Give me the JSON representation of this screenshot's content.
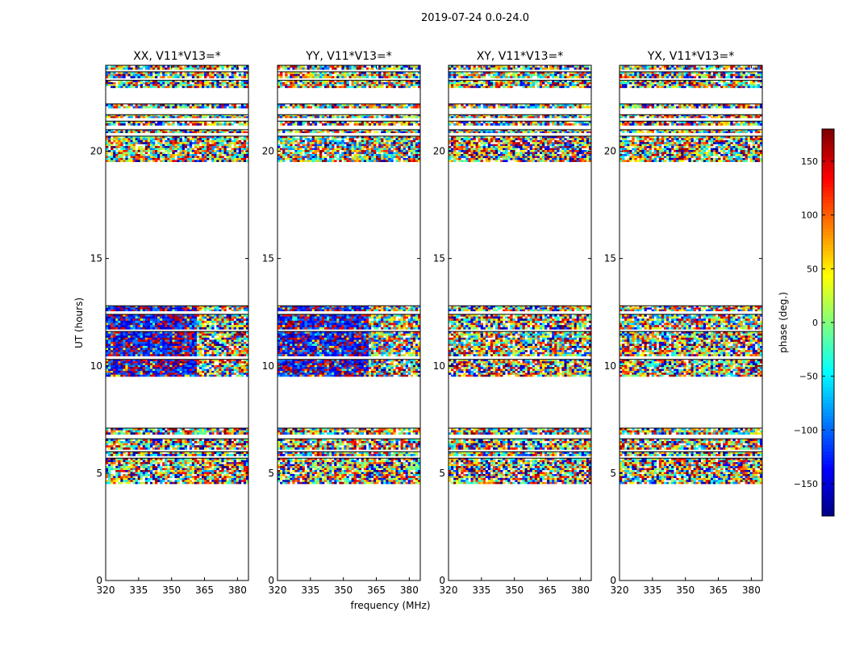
{
  "figure_title": "2019-07-24 0.0-24.0",
  "chart_data": [
    {
      "type": "heatmap",
      "title": "XX, V11*V13=*",
      "xlabel": "",
      "ylabel": "UT (hours)",
      "xlim": [
        320,
        385
      ],
      "ylim": [
        0,
        24
      ],
      "xticks": [
        320,
        335,
        350,
        365,
        380
      ],
      "yticks": [
        0,
        5,
        10,
        15,
        20
      ],
      "value_field": "phase (deg.)",
      "phase_character": "strong blue/red bias in 320-360 MHz during 9.5-12.8 h; random elsewhere",
      "bias_band": [
        320,
        362
      ]
    },
    {
      "type": "heatmap",
      "title": "YY, V11*V13=*",
      "xlabel": "frequency (MHz)",
      "ylabel": "",
      "xlim": [
        320,
        385
      ],
      "ylim": [
        0,
        24
      ],
      "xticks": [
        320,
        335,
        350,
        365,
        380
      ],
      "yticks": [
        0,
        5,
        10,
        15,
        20
      ],
      "value_field": "phase (deg.)",
      "phase_character": "strong blue/red bias in 320-360 MHz during 9.5-12.8 h; random elsewhere",
      "bias_band": [
        320,
        361
      ]
    },
    {
      "type": "heatmap",
      "title": "XY, V11*V13=*",
      "xlabel": "",
      "ylabel": "",
      "xlim": [
        320,
        385
      ],
      "ylim": [
        0,
        24
      ],
      "xticks": [
        320,
        335,
        350,
        365,
        380
      ],
      "yticks": [
        0,
        5,
        10,
        15,
        20
      ],
      "value_field": "phase (deg.)",
      "phase_character": "random phase noise in all data blocks",
      "bias_band": null
    },
    {
      "type": "heatmap",
      "title": "YX, V11*V13=*",
      "xlabel": "",
      "ylabel": "",
      "xlim": [
        320,
        385
      ],
      "ylim": [
        0,
        24
      ],
      "xticks": [
        320,
        335,
        350,
        365,
        380
      ],
      "yticks": [
        0,
        5,
        10,
        15,
        20
      ],
      "value_field": "phase (deg.)",
      "phase_character": "random phase noise in all data blocks",
      "bias_band": null
    }
  ],
  "data_coverage_ut_hours": [
    [
      4.5,
      5.7
    ],
    [
      5.8,
      6.0
    ],
    [
      6.1,
      6.6
    ],
    [
      6.8,
      7.1
    ],
    [
      9.5,
      10.3
    ],
    [
      10.45,
      11.6
    ],
    [
      11.7,
      12.4
    ],
    [
      12.55,
      12.8
    ],
    [
      19.5,
      20.7
    ],
    [
      20.85,
      21.0
    ],
    [
      21.2,
      21.4
    ],
    [
      21.55,
      21.7
    ],
    [
      22.0,
      22.2
    ],
    [
      22.95,
      23.3
    ],
    [
      23.4,
      23.7
    ],
    [
      23.8,
      24.0
    ]
  ],
  "colorbar": {
    "label": "phase (deg.)",
    "range": [
      -180,
      180
    ],
    "ticks": [
      150,
      100,
      50,
      0,
      -50,
      -100,
      -150
    ],
    "tick_labels": [
      "150",
      "100",
      "50",
      "0",
      "−50",
      "−100",
      "−150"
    ],
    "colormap": "jet"
  }
}
